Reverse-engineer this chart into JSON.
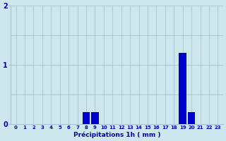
{
  "hours": [
    0,
    1,
    2,
    3,
    4,
    5,
    6,
    7,
    8,
    9,
    10,
    11,
    12,
    13,
    14,
    15,
    16,
    17,
    18,
    19,
    20,
    21,
    22,
    23
  ],
  "values": [
    0,
    0,
    0,
    0,
    0,
    0,
    0,
    0,
    0.2,
    0.2,
    0,
    0,
    0,
    0,
    0,
    0,
    0,
    0,
    0,
    1.2,
    0.2,
    0,
    0,
    0
  ],
  "bar_color": "#0000cc",
  "background_color": "#cce8ee",
  "grid_color": "#aabbcc",
  "xlabel": "Précipitations 1h ( mm )",
  "xlabel_color": "#0000aa",
  "tick_color": "#0000aa",
  "ylim": [
    0,
    2
  ],
  "yticks": [
    0,
    1,
    2
  ],
  "bar_width": 0.85
}
